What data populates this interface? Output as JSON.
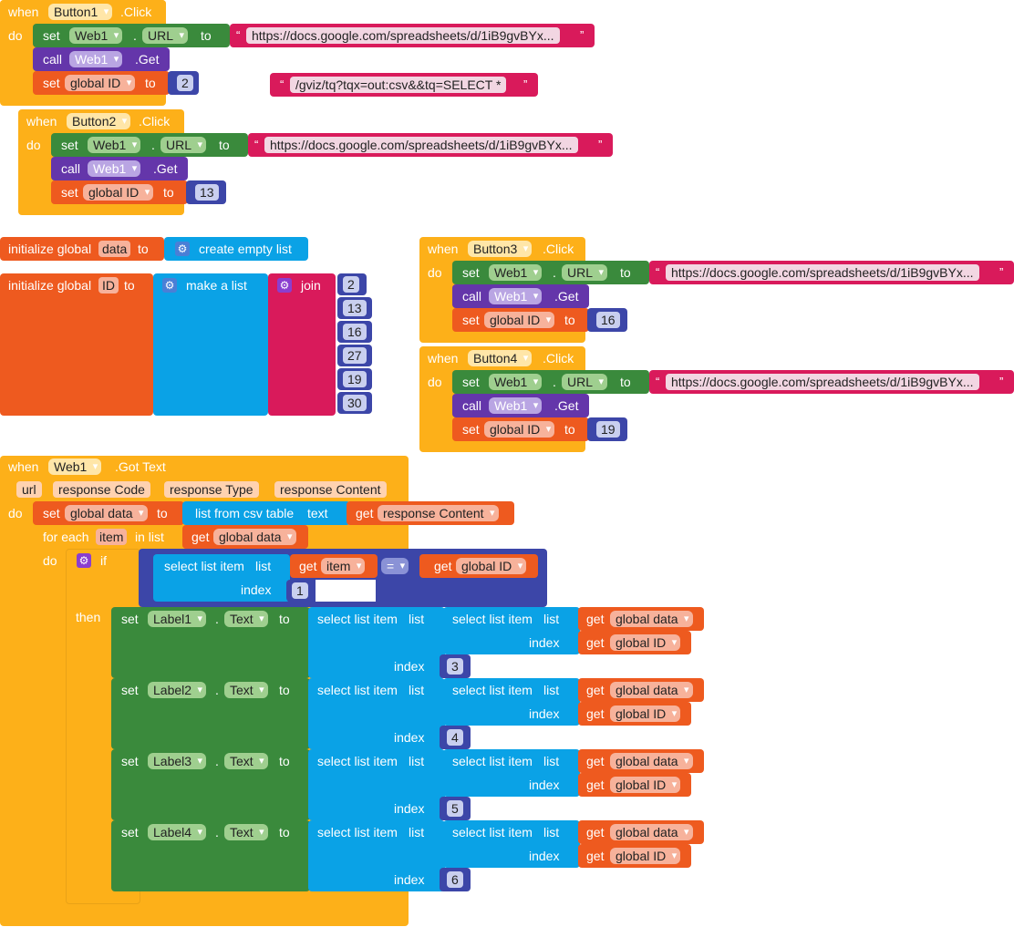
{
  "kw": {
    "when": "when",
    "do": "do",
    "set": "set",
    "to": "to",
    "call": "call",
    "dot": ".",
    "click": ".Click",
    "get_event": ".Get",
    "got_text": ".Got Text",
    "init_global": "initialize global",
    "create_empty_list": "create empty list",
    "make_a_list": "make a list",
    "join": "join",
    "for_each": "for each",
    "in_list": "in list",
    "if": "if",
    "then": "then",
    "get": "get",
    "select_list_item": "select list item",
    "list": "list",
    "index": "index",
    "list_from_csv": "list from csv table",
    "text": "text",
    "eq": "="
  },
  "components": {
    "button1": "Button1",
    "button2": "Button2",
    "button3": "Button3",
    "button4": "Button4",
    "web1": "Web1",
    "label1": "Label1",
    "label2": "Label2",
    "label3": "Label3",
    "label4": "Label4"
  },
  "props": {
    "url": "URL",
    "text": "Text"
  },
  "vars": {
    "global_id": "global ID",
    "global_data": "global data",
    "data": "data",
    "id": "ID",
    "item": "item",
    "response_content": "response Content"
  },
  "params": {
    "url": "url",
    "response_code": "response Code",
    "response_type": "response Type",
    "response_content": "response Content"
  },
  "strings": {
    "sheet_url": "https://docs.google.com/spreadsheets/d/1iB9gvBYx...",
    "query": "/gviz/tq?tqx=out:csv&&tq=SELECT *"
  },
  "numbers": {
    "b1_id": "2",
    "b2_id": "13",
    "b3_id": "16",
    "b4_id": "19",
    "join_items": [
      "2",
      "13",
      "16",
      "27",
      "19",
      "30"
    ],
    "if_index": "1",
    "label_indexes": [
      "3",
      "4",
      "5",
      "6"
    ]
  },
  "colors": {
    "event": "#fdb019",
    "setter": "#3a8a3c",
    "method": "#6436aa",
    "variable": "#ee5a1f",
    "text": "#d91a5b",
    "list": "#0aa2e6",
    "math": "#3c46a8"
  }
}
